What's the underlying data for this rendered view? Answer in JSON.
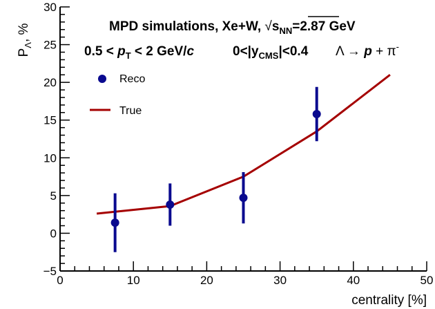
{
  "chart_data": {
    "type": "line",
    "xlabel": "centrality [%]",
    "ylabel": "P",
    "ylabel_sub": "Λ",
    "ylabel_suffix": ", %",
    "xlim": [
      0,
      50
    ],
    "ylim": [
      -5,
      30
    ],
    "x_ticks": [
      0,
      10,
      20,
      30,
      40,
      50
    ],
    "y_ticks": [
      -5,
      0,
      5,
      10,
      15,
      20,
      25,
      30
    ],
    "x_tick_labels": [
      "0",
      "10",
      "20",
      "30",
      "40",
      "50"
    ],
    "y_tick_labels": [
      "−5",
      "0",
      "5",
      "10",
      "15",
      "20",
      "25",
      "30"
    ],
    "grid": false,
    "legend_placement": "top-left",
    "series": [
      {
        "name": "Reco",
        "kind": "points-with-errors",
        "color": "#0a0a8f",
        "points": [
          {
            "x": 7.5,
            "y": 1.4,
            "err": 3.9
          },
          {
            "x": 15,
            "y": 3.8,
            "err": 2.8
          },
          {
            "x": 25,
            "y": 4.7,
            "err": 3.4
          },
          {
            "x": 35,
            "y": 15.8,
            "err": 3.6
          }
        ]
      },
      {
        "name": "True",
        "kind": "line",
        "color": "#a50000",
        "points": [
          {
            "x": 5,
            "y": 2.6
          },
          {
            "x": 15,
            "y": 3.6
          },
          {
            "x": 25,
            "y": 7.5
          },
          {
            "x": 35,
            "y": 13.5
          },
          {
            "x": 45,
            "y": 21.0
          }
        ]
      }
    ],
    "annotations": {
      "line1_prefix": "MPD simulations, Xe+W, ",
      "line1_sqrt": "√",
      "line1_s": "s",
      "line1_sub": "NN",
      "line1_suffix": "=2.87 GeV",
      "line2_pt_a": "0.5 < ",
      "line2_pt_p": "p",
      "line2_pt_sub": "T",
      "line2_pt_b": " < 2 GeV/",
      "line2_pt_c": "c",
      "line2_y_a": "0<|y",
      "line2_y_sub": "CMS",
      "line2_y_b": "|<0.4",
      "line2_decay_a": "Λ → ",
      "line2_decay_p": "p",
      "line2_decay_b": " + π",
      "line2_decay_sup": "-"
    }
  }
}
